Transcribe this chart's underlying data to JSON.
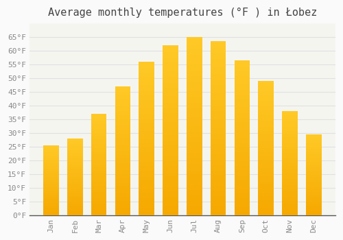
{
  "title": "Average monthly temperatures (°F ) in Łobez",
  "months": [
    "Jan",
    "Feb",
    "Mar",
    "Apr",
    "May",
    "Jun",
    "Jul",
    "Aug",
    "Sep",
    "Oct",
    "Nov",
    "Dec"
  ],
  "values": [
    25.5,
    28.0,
    37.0,
    47.0,
    56.0,
    62.0,
    65.0,
    63.5,
    56.5,
    49.0,
    38.0,
    29.5
  ],
  "bar_color_top": "#FFC926",
  "bar_color_bottom": "#F5A800",
  "background_color": "#FAFAFA",
  "plot_bg_color": "#F5F5F0",
  "grid_color": "#E0E0E0",
  "text_color": "#888888",
  "title_color": "#444444",
  "ylim": [
    0,
    70
  ],
  "yticks": [
    0,
    5,
    10,
    15,
    20,
    25,
    30,
    35,
    40,
    45,
    50,
    55,
    60,
    65
  ],
  "title_fontsize": 11,
  "tick_fontsize": 8,
  "font_family": "monospace",
  "bar_width": 0.65
}
